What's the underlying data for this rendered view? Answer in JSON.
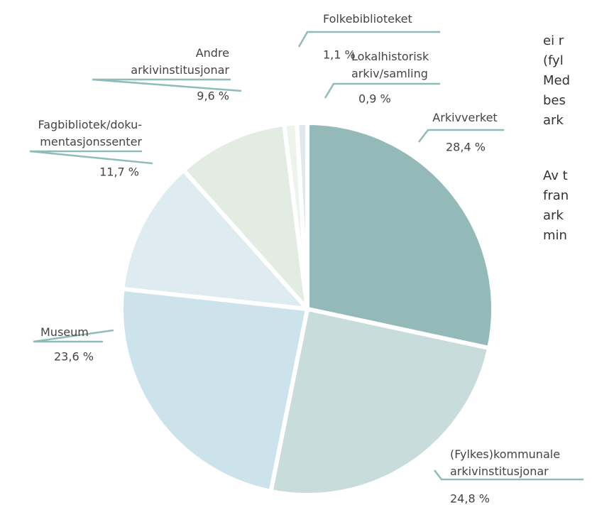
{
  "chart_data": {
    "type": "pie",
    "categories": [
      "Arkivverket",
      "(Fylkes)kommunale\narkivinstitusjonar",
      "Museum",
      "Fagbibliotek/doku-\nmentasjonssenter",
      "Andre\narkivinstitusjonar",
      "Folkebiblioteket",
      "Lokalhistorisk\narkiv/samling"
    ],
    "values": [
      28.4,
      24.8,
      23.6,
      11.7,
      9.6,
      1.1,
      0.9
    ],
    "value_labels": [
      "28,4 %",
      "24,8 %",
      "23,6 %",
      "11,7 %",
      "9,6 %",
      "1,1 %",
      "0,9  %"
    ],
    "colors": [
      "#93bab8",
      "#c8dcdc",
      "#cce3ec",
      "#deebf1",
      "#e3ece3",
      "#eef4ec",
      "#dfe8ec"
    ]
  },
  "side_text": [
    "ei r",
    "(fyl",
    "Med",
    "bes",
    "ark",
    "Av t",
    "fran",
    "ark",
    "min"
  ]
}
